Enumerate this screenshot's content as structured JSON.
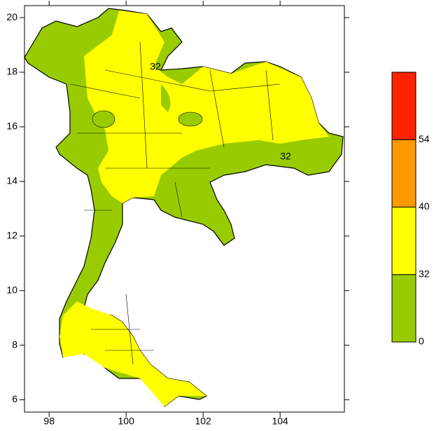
{
  "map": {
    "xlim": [
      97.36,
      105.67
    ],
    "ylim": [
      5.55,
      20.44
    ],
    "xticks": [
      98,
      100,
      102,
      104
    ],
    "yticks": [
      6,
      8,
      10,
      12,
      14,
      16,
      18,
      20
    ],
    "contour_labels": [
      "32",
      "32"
    ]
  },
  "colorbar": {
    "levels": [
      0,
      32,
      40,
      54
    ],
    "colors": [
      "#99cc00",
      "#ffff00",
      "#ff9900",
      "#ff2200"
    ]
  }
}
